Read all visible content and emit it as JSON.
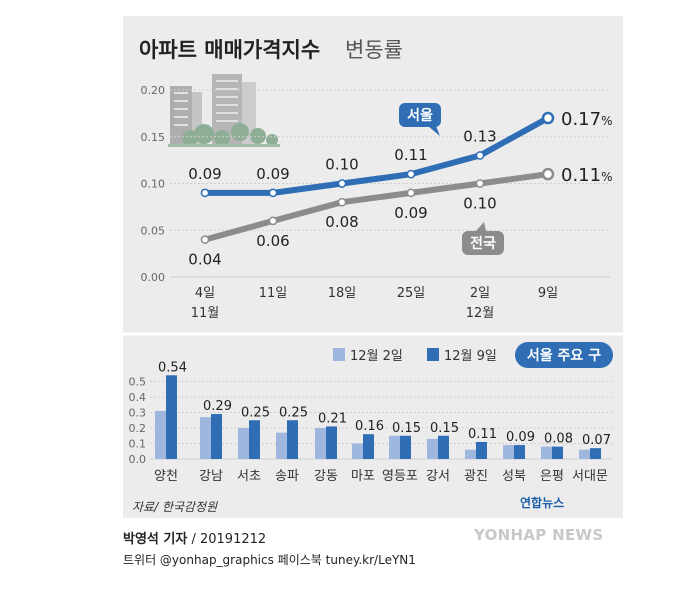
{
  "title": {
    "main": "아파트 매매가격지수",
    "sub": "변동률"
  },
  "source_label": "자료/ 한국감정원",
  "byline": {
    "author": "박영석 기자",
    "date": "/ 20191212"
  },
  "social": "트위터 @yonhap_graphics  페이스북 tuney.kr/LeYN1",
  "sub_logo": "연합뉴스",
  "brand_logo": "YONHAP NEWS",
  "colors": {
    "seoul": "#2f6db5",
    "national": "#8c8c8c",
    "bar_dec2": "#9fb6de",
    "bar_dec9": "#2f6db5"
  },
  "chart_data": [
    {
      "type": "line",
      "categories": [
        "4일 11월",
        "11일",
        "18일",
        "25일",
        "2일 12월",
        "9일"
      ],
      "x_label_lines": [
        [
          "4일",
          "11월"
        ],
        [
          "11일"
        ],
        [
          "18일"
        ],
        [
          "25일"
        ],
        [
          "2일",
          "12월"
        ],
        [
          "9일"
        ]
      ],
      "ylim": [
        0.0,
        0.2
      ],
      "yticks": [
        "0.20",
        "0.15",
        "0.10",
        "0.05",
        "0.00"
      ],
      "ytick_values": [
        0.2,
        0.15,
        0.1,
        0.05,
        0.0
      ],
      "grid": true,
      "series": [
        {
          "name": "서울",
          "values": [
            0.09,
            0.09,
            0.1,
            0.11,
            0.13,
            0.17
          ],
          "labels": [
            "0.09",
            "0.09",
            "0.10",
            "0.11",
            "0.13",
            "0.17"
          ],
          "last_label_unit": "%"
        },
        {
          "name": "전국",
          "values": [
            0.04,
            0.06,
            0.08,
            0.09,
            0.1,
            0.11
          ],
          "labels": [
            "0.04",
            "0.06",
            "0.08",
            "0.09",
            "0.10",
            "0.11"
          ],
          "last_label_unit": "%"
        }
      ]
    },
    {
      "type": "bar",
      "title": "서울 주요 구",
      "categories": [
        "양천",
        "강남",
        "서초",
        "송파",
        "강동",
        "마포",
        "영등포",
        "강서",
        "광진",
        "성북",
        "은평",
        "서대문"
      ],
      "ylim": [
        0.0,
        0.6
      ],
      "yticks": [
        "0.5",
        "0.4",
        "0.3",
        "0.2",
        "0.1",
        "0.0"
      ],
      "ytick_values": [
        0.5,
        0.4,
        0.3,
        0.2,
        0.1,
        0.0
      ],
      "grid": true,
      "legend_position": "top",
      "series": [
        {
          "name": "12월 2일",
          "values": [
            0.31,
            0.27,
            0.2,
            0.17,
            0.2,
            0.1,
            0.15,
            0.13,
            0.06,
            0.09,
            0.08,
            0.06
          ]
        },
        {
          "name": "12월 9일",
          "values": [
            0.54,
            0.29,
            0.25,
            0.25,
            0.21,
            0.16,
            0.15,
            0.15,
            0.11,
            0.09,
            0.08,
            0.07
          ],
          "labels": [
            "0.54",
            "0.29",
            "0.25",
            "0.25",
            "0.21",
            "0.16",
            "0.15",
            "0.15",
            "0.11",
            "0.09",
            "0.08",
            "0.07"
          ]
        }
      ]
    }
  ]
}
